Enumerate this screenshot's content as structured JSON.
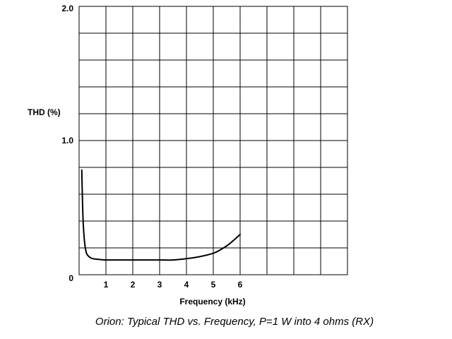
{
  "chart_data": {
    "type": "line",
    "title": "Orion: Typical THD vs. Frequency, P=1 W into 4 ohms (RX)",
    "xlabel": "Frequency  (kHz)",
    "ylabel": "THD (%)",
    "xlim": [
      0,
      10
    ],
    "ylim": [
      0,
      2.0
    ],
    "x_ticks": [
      1,
      2,
      3,
      4,
      5,
      6
    ],
    "x_tick_labels": [
      "1",
      "2",
      "3",
      "4",
      "5",
      "6"
    ],
    "y_ticks": [
      0,
      1.0,
      2.0
    ],
    "y_tick_labels": [
      "0",
      "1.0",
      "2.0"
    ],
    "grid": true,
    "grid_x_step": 1,
    "grid_y_step": 0.2,
    "series": [
      {
        "color": "#000000",
        "x": [
          0.1,
          0.12,
          0.15,
          0.2,
          0.25,
          0.3,
          0.4,
          0.5,
          0.7,
          1.0,
          1.5,
          2.0,
          2.5,
          3.0,
          3.5,
          4.0,
          4.5,
          5.0,
          5.3,
          5.6,
          6.0
        ],
        "y": [
          0.78,
          0.6,
          0.4,
          0.25,
          0.18,
          0.15,
          0.13,
          0.12,
          0.115,
          0.11,
          0.11,
          0.11,
          0.11,
          0.11,
          0.11,
          0.12,
          0.135,
          0.16,
          0.19,
          0.23,
          0.3
        ]
      }
    ]
  }
}
